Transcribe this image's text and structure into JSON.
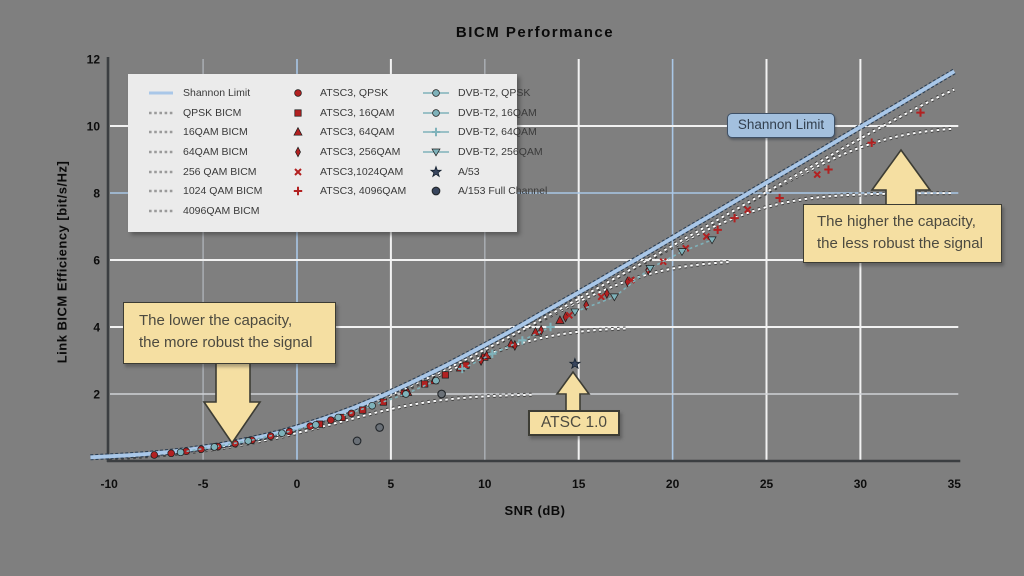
{
  "title": "BICM Performance",
  "annotations": {
    "shannon_badge": {
      "text": "Shannon Limit"
    },
    "higher_capacity": {
      "line1": "The higher the capacity,",
      "line2": "the less robust the signal"
    },
    "lower_capacity": {
      "line1": "The lower the capacity,",
      "line2": "the more robust the signal"
    },
    "atsc10": {
      "text": "ATSC 1.0"
    }
  },
  "colors": {
    "background": "#7f7f7f",
    "legend_bg": "#ebebeb",
    "shannon_line": "#a9c7e8",
    "shannon_outline": "#2c3e52",
    "bicm_dash": "#ffffff",
    "bicm_dash_outline": "#3f3f3f",
    "atsc3_red": "#b22121",
    "dvbt2_teal": "#7fb2ba",
    "a53_navy": "#39465e",
    "a153_gray": "#6a7077",
    "grid_white": "#f2f2f2",
    "grid_blue": "#a9c7e6",
    "axis": "#3b3e41",
    "callout_fill": "#f5dfa2",
    "callout_border": "#3c3c34"
  },
  "legend": {
    "columns": [
      {
        "items": [
          {
            "marker": "line-blue",
            "label": "Shannon Limit"
          },
          {
            "marker": "dash-gray",
            "label": "QPSK BICM"
          },
          {
            "marker": "dash-gray",
            "label": "16QAM BICM"
          },
          {
            "marker": "dash-gray",
            "label": "64QAM BICM"
          },
          {
            "marker": "dash-gray",
            "label": "256 QAM BICM"
          },
          {
            "marker": "dash-gray",
            "label": "1024 QAM BICM"
          },
          {
            "marker": "dash-gray",
            "label": "4096QAM BICM"
          }
        ]
      },
      {
        "items": [
          {
            "marker": "circle-red",
            "label": "ATSC3, QPSK"
          },
          {
            "marker": "square-red",
            "label": "ATSC3, 16QAM"
          },
          {
            "marker": "triangle-red",
            "label": "ATSC3, 64QAM"
          },
          {
            "marker": "diamond-red",
            "label": "ATSC3, 256QAM"
          },
          {
            "marker": "x-red",
            "label": "ATSC3,1024QAM"
          },
          {
            "marker": "plus-red",
            "label": "ATSC3, 4096QAM"
          }
        ]
      },
      {
        "items": [
          {
            "marker": "line-circle-teal",
            "label": "DVB-T2, QPSK"
          },
          {
            "marker": "line-circle-teal",
            "label": "DVB-T2, 16QAM"
          },
          {
            "marker": "line-plus-teal",
            "label": "DVB-T2, 64QAM"
          },
          {
            "marker": "line-tridown-teal",
            "label": "DVB-T2, 256QAM"
          },
          {
            "marker": "star-navy",
            "label": "A/53"
          },
          {
            "marker": "dot-navy",
            "label": "A/153 Full Channel"
          }
        ]
      }
    ]
  },
  "chart_data": {
    "type": "line+scatter",
    "title": "BICM Performance",
    "xlabel": "SNR (dB)",
    "ylabel": "Link BICM Efficiency [bit/s/Hz]",
    "xlim": [
      -10,
      35
    ],
    "ylim": [
      0,
      12
    ],
    "xticks": [
      -10,
      -5,
      0,
      5,
      10,
      15,
      20,
      25,
      30,
      35
    ],
    "yticks": [
      2,
      4,
      6,
      8,
      10,
      12
    ],
    "grid": {
      "vertical": [
        {
          "v": -5,
          "c": "#a7abb0"
        },
        {
          "v": 0,
          "c": "blue"
        },
        {
          "v": 5,
          "c": "white"
        },
        {
          "v": 10,
          "c": "#a7abb0"
        },
        {
          "v": 15,
          "c": "white"
        },
        {
          "v": 20,
          "c": "blue"
        },
        {
          "v": 25,
          "c": "white"
        },
        {
          "v": 30,
          "c": "white"
        }
      ],
      "horizontal": [
        {
          "v": 2,
          "c": "#cfd2d6"
        },
        {
          "v": 4,
          "c": "white"
        },
        {
          "v": 6,
          "c": "white"
        },
        {
          "v": 8,
          "c": "blue"
        },
        {
          "v": 10,
          "c": "white"
        }
      ]
    },
    "shannon_limit": {
      "name": "Shannon Limit",
      "points": [
        [
          -11,
          0.11
        ],
        [
          -10,
          0.14
        ],
        [
          -9,
          0.17
        ],
        [
          -8,
          0.21
        ],
        [
          -7,
          0.26
        ],
        [
          -6,
          0.32
        ],
        [
          -5,
          0.4
        ],
        [
          -4,
          0.48
        ],
        [
          -3,
          0.59
        ],
        [
          -2,
          0.71
        ],
        [
          -1,
          0.84
        ],
        [
          0,
          1.0
        ],
        [
          1,
          1.18
        ],
        [
          2,
          1.37
        ],
        [
          3,
          1.58
        ],
        [
          4,
          1.81
        ],
        [
          5,
          2.06
        ],
        [
          6,
          2.32
        ],
        [
          7,
          2.59
        ],
        [
          8,
          2.87
        ],
        [
          9,
          3.16
        ],
        [
          10,
          3.46
        ],
        [
          11,
          3.76
        ],
        [
          12,
          4.07
        ],
        [
          13,
          4.39
        ],
        [
          14,
          4.71
        ],
        [
          15,
          5.03
        ],
        [
          16,
          5.35
        ],
        [
          17,
          5.68
        ],
        [
          18,
          6.0
        ],
        [
          19,
          6.33
        ],
        [
          20,
          6.66
        ],
        [
          21,
          6.99
        ],
        [
          22,
          7.32
        ],
        [
          23,
          7.65
        ],
        [
          24,
          7.98
        ],
        [
          25,
          8.31
        ],
        [
          26,
          8.64
        ],
        [
          27,
          8.97
        ],
        [
          28,
          9.3
        ],
        [
          29,
          9.64
        ],
        [
          30,
          9.97
        ],
        [
          31,
          10.3
        ],
        [
          32,
          10.63
        ],
        [
          33,
          10.96
        ],
        [
          34,
          11.3
        ],
        [
          35,
          11.63
        ]
      ]
    },
    "bicm_curves": [
      {
        "name": "QPSK BICM",
        "cap": 2,
        "end_snr": 12.5
      },
      {
        "name": "16QAM BICM",
        "cap": 4,
        "end_snr": 17.5
      },
      {
        "name": "64QAM BICM",
        "cap": 6,
        "end_snr": 23
      },
      {
        "name": "256 QAM BICM",
        "cap": 8,
        "end_snr": 35
      },
      {
        "name": "1024 QAM BICM",
        "cap": 10,
        "end_snr": 35
      },
      {
        "name": "4096QAM BICM",
        "cap": 12,
        "end_snr": 35
      }
    ],
    "series": [
      {
        "name": "ATSC3, QPSK",
        "marker": "circle",
        "color": "atsc3_red",
        "points": [
          [
            -7.6,
            0.18
          ],
          [
            -6.7,
            0.23
          ],
          [
            -5.9,
            0.29
          ],
          [
            -5.1,
            0.35
          ],
          [
            -4.2,
            0.43
          ],
          [
            -3.3,
            0.52
          ],
          [
            -2.4,
            0.62
          ],
          [
            -1.4,
            0.74
          ],
          [
            -0.4,
            0.88
          ],
          [
            0.7,
            1.04
          ],
          [
            1.8,
            1.22
          ],
          [
            2.9,
            1.42
          ]
        ]
      },
      {
        "name": "ATSC3, 16QAM",
        "marker": "square",
        "color": "atsc3_red",
        "points": [
          [
            1.2,
            1.1
          ],
          [
            2.4,
            1.3
          ],
          [
            3.5,
            1.52
          ],
          [
            4.6,
            1.76
          ],
          [
            5.7,
            2.02
          ],
          [
            6.8,
            2.3
          ],
          [
            7.9,
            2.57
          ],
          [
            9.0,
            2.86
          ],
          [
            10.0,
            3.1
          ]
        ]
      },
      {
        "name": "ATSC3, 64QAM",
        "marker": "triangle-up",
        "color": "atsc3_red",
        "points": [
          [
            5.9,
            2.05
          ],
          [
            7.3,
            2.4
          ],
          [
            8.7,
            2.78
          ],
          [
            10.1,
            3.15
          ],
          [
            11.4,
            3.5
          ],
          [
            12.7,
            3.85
          ],
          [
            14.0,
            4.2
          ]
        ]
      },
      {
        "name": "ATSC3, 256QAM",
        "marker": "diamond",
        "color": "atsc3_red",
        "points": [
          [
            9.8,
            3.0
          ],
          [
            11.6,
            3.45
          ],
          [
            13.0,
            3.9
          ],
          [
            14.3,
            4.3
          ],
          [
            15.4,
            4.65
          ],
          [
            16.5,
            5.0
          ],
          [
            17.6,
            5.35
          ],
          [
            18.7,
            5.7
          ]
        ]
      },
      {
        "name": "ATSC3,1024QAM",
        "marker": "x",
        "color": "atsc3_red",
        "points": [
          [
            14.5,
            4.35
          ],
          [
            16.2,
            4.9
          ],
          [
            17.8,
            5.4
          ],
          [
            19.5,
            5.95
          ],
          [
            20.7,
            6.35
          ],
          [
            21.8,
            6.7
          ],
          [
            24.0,
            7.5
          ],
          [
            27.7,
            8.55
          ]
        ]
      },
      {
        "name": "ATSC3, 4096QAM",
        "marker": "plus",
        "color": "atsc3_red",
        "points": [
          [
            22.4,
            6.9
          ],
          [
            23.3,
            7.25
          ],
          [
            25.7,
            7.85
          ],
          [
            28.3,
            8.7
          ],
          [
            30.6,
            9.5
          ],
          [
            33.2,
            10.4
          ]
        ]
      },
      {
        "name": "DVB-T2, QPSK",
        "marker": "circle",
        "color": "dvbt2_teal",
        "line": true,
        "points": [
          [
            -6.2,
            0.26
          ],
          [
            -4.4,
            0.42
          ],
          [
            -2.6,
            0.6
          ],
          [
            -0.8,
            0.83
          ],
          [
            1.0,
            1.08
          ]
        ]
      },
      {
        "name": "DVB-T2, 16QAM",
        "marker": "circle",
        "color": "dvbt2_teal",
        "line": true,
        "points": [
          [
            2.2,
            1.3
          ],
          [
            4.0,
            1.65
          ],
          [
            5.8,
            2.0
          ],
          [
            7.4,
            2.4
          ]
        ]
      },
      {
        "name": "DVB-T2, 64QAM",
        "marker": "plus",
        "color": "dvbt2_teal",
        "line": true,
        "points": [
          [
            8.8,
            2.75
          ],
          [
            10.4,
            3.2
          ],
          [
            12.0,
            3.6
          ],
          [
            13.5,
            4.0
          ]
        ]
      },
      {
        "name": "DVB-T2, 256QAM",
        "marker": "triangle-down",
        "color": "dvbt2_teal",
        "line": true,
        "points": [
          [
            14.8,
            4.45
          ],
          [
            16.9,
            4.9
          ],
          [
            18.8,
            5.75
          ],
          [
            20.5,
            6.25
          ],
          [
            22.1,
            6.6
          ]
        ]
      },
      {
        "name": "A/53",
        "marker": "star",
        "color": "a53_navy",
        "points": [
          [
            14.8,
            2.9
          ]
        ]
      },
      {
        "name": "A/153 Full Channel",
        "marker": "dot",
        "color": "a153_gray",
        "points": [
          [
            3.2,
            0.6
          ],
          [
            4.4,
            1.0
          ],
          [
            7.7,
            2.0
          ]
        ]
      }
    ]
  }
}
